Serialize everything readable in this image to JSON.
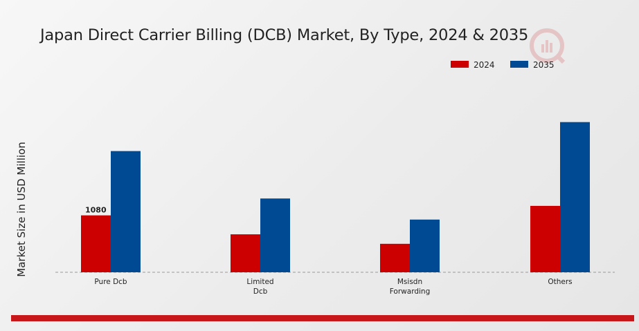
{
  "chart_data": {
    "type": "bar",
    "title": "Japan Direct Carrier Billing (DCB) Market, By Type, 2024 & 2035",
    "xlabel": "",
    "ylabel": "Market Size in USD Million",
    "categories": [
      [
        "Pure Dcb"
      ],
      [
        "Limited",
        "Dcb"
      ],
      [
        "Msisdn",
        "Forwarding"
      ],
      [
        "Others"
      ]
    ],
    "series": [
      {
        "name": "2024",
        "color": "#cc0000",
        "values": [
          1080,
          720,
          540,
          1260
        ]
      },
      {
        "name": "2035",
        "color": "#004a94",
        "values": [
          2300,
          1400,
          1000,
          2850
        ]
      }
    ],
    "data_labels": [
      {
        "series": 0,
        "index": 0,
        "text": "1080"
      }
    ],
    "ylim": [
      0,
      3200
    ],
    "grid": false,
    "legend": "top-right",
    "baseline": "dashed"
  },
  "colors": {
    "accent_band": "#c8171b"
  }
}
